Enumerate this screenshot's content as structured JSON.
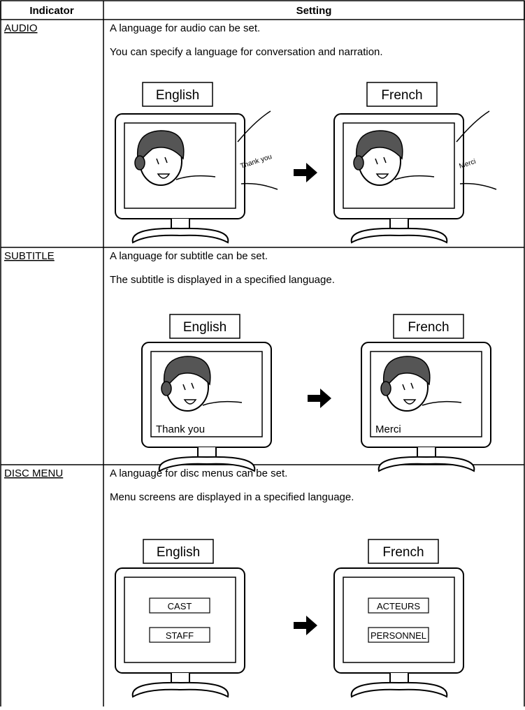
{
  "table": {
    "header": [
      "Indicator",
      "Setting"
    ],
    "rows": [
      {
        "indicator": "AUDIO",
        "lines": [
          "A language for audio can be set.",
          "You can specify a language for conversation and narration."
        ],
        "before": {
          "label": "English",
          "speech": "Thank you"
        },
        "after": {
          "label": "French",
          "speech": "Merci"
        }
      },
      {
        "indicator": "SUBTITLE",
        "lines": [
          "A language for subtitle can be set.",
          "The subtitle is displayed in a specified language."
        ],
        "before": {
          "label": "English",
          "caption": "Thank you"
        },
        "after": {
          "label": "French",
          "caption": "Merci"
        }
      },
      {
        "indicator": "DISC MENU",
        "lines": [
          "A language for disc menus can be set.",
          "Menu screens are displayed in a specified language."
        ],
        "before": {
          "label": "English",
          "menu_items": [
            "CAST",
            "STAFF"
          ]
        },
        "after": {
          "label": "French",
          "menu_items": [
            "ACTEURS",
            "PERSONNEL"
          ]
        }
      }
    ]
  }
}
